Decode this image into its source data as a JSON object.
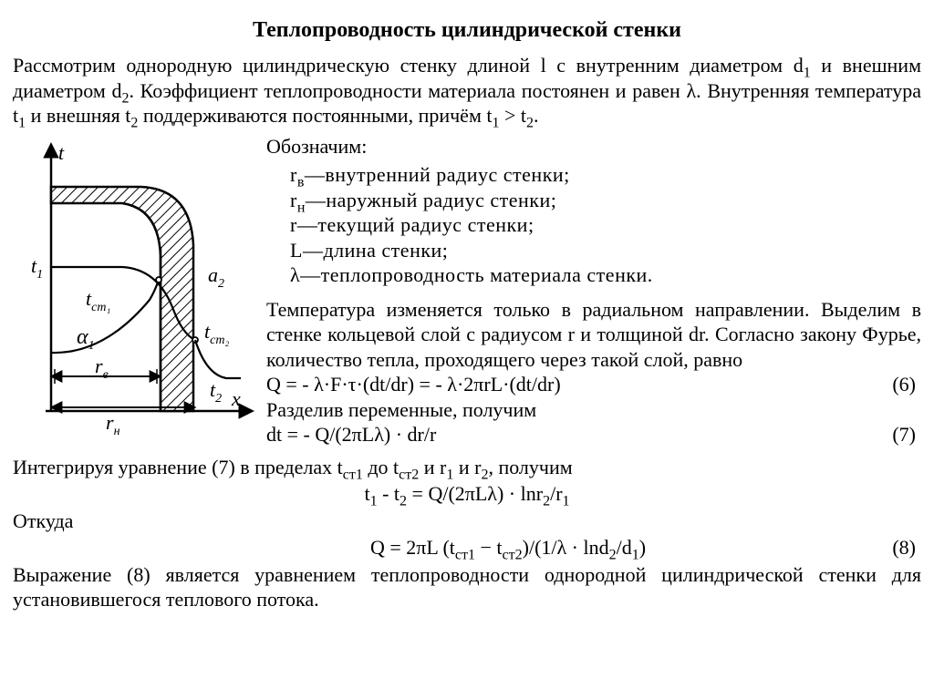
{
  "title": "Теплопроводность цилиндрической стенки",
  "intro_html": "Рассмотрим однородную цилиндрическую стенку длиной l с внутренним диаметром d<span class=\"sub\">1</span> и внешним диаметром d<span class=\"sub\">2</span>. Коэффициент теплопроводности материала постоянен и равен λ. Внутренняя температура t<span class=\"sub\">1</span> и внешняя t<span class=\"sub\">2</span> поддерживаются постоянными, причём t<span class=\"sub\">1</span> > t<span class=\"sub\">2</span>.",
  "def_head": "Обозначим:",
  "defs": [
    "r<span class=\"sub\">в</span>—внутренний радиус стенки;",
    "r<span class=\"sub\">н</span>—наружный радиус стенки;",
    "r—текущий радиус стенки;",
    "L—длина стенки;",
    "λ—теплопроводность материала стенки."
  ],
  "para_phys_html": "Температура изменяется только в радиальном направлении. Выделим в стенке кольцевой слой с радиусом r и толщиной dr. Согласно закону Фурье, количество тепла, проходящего через такой слой, равно",
  "eq6": "Q = - λ·F·τ·(dt/dr) = - λ·2πrL·(dt/dr)",
  "eq6_num": "(6)",
  "sep_text": "Разделив переменные, получим",
  "eq7": "dt = - Q/(2πLλ) · dr/r",
  "eq7_num": "(7)",
  "integr_html": "Интегрируя уравнение (7)  в пределах t<span class=\"sub\">ст1</span> до t<span class=\"sub\">ст2</span> и r<span class=\"sub\">1</span> и r<span class=\"sub\">2</span>, получим",
  "eq_after_integr_html": "t<span class=\"sub\">1</span> - t<span class=\"sub\">2</span> = Q/(2πLλ) · lnr<span class=\"sub\">2</span>/r<span class=\"sub\">1</span>",
  "whence": "Откуда",
  "eq8_html": "Q = 2πL (t<span class=\"sub\">ст1</span> − t<span class=\"sub\">ст2</span>)/(1/λ · lnd<span class=\"sub\">2</span>/d<span class=\"sub\">1</span>)",
  "eq8_num": "(8)",
  "conclusion_html": "Выражение (8) является уравнением теплопроводности однородной цилиндрической стенки для установившегося теплового потока.",
  "figure": {
    "type": "diagram",
    "stroke": "#000000",
    "background": "#ffffff",
    "hatch_color": "#000000",
    "labels": {
      "t_axis": "t",
      "x_axis": "x",
      "t1": "t₁",
      "t2": "t₂",
      "tc1": "t꜀₁",
      "tc2": "t꜀₂",
      "a1": "α₁",
      "a2": "α₂",
      "rv": "rв",
      "rn": "rн"
    }
  }
}
